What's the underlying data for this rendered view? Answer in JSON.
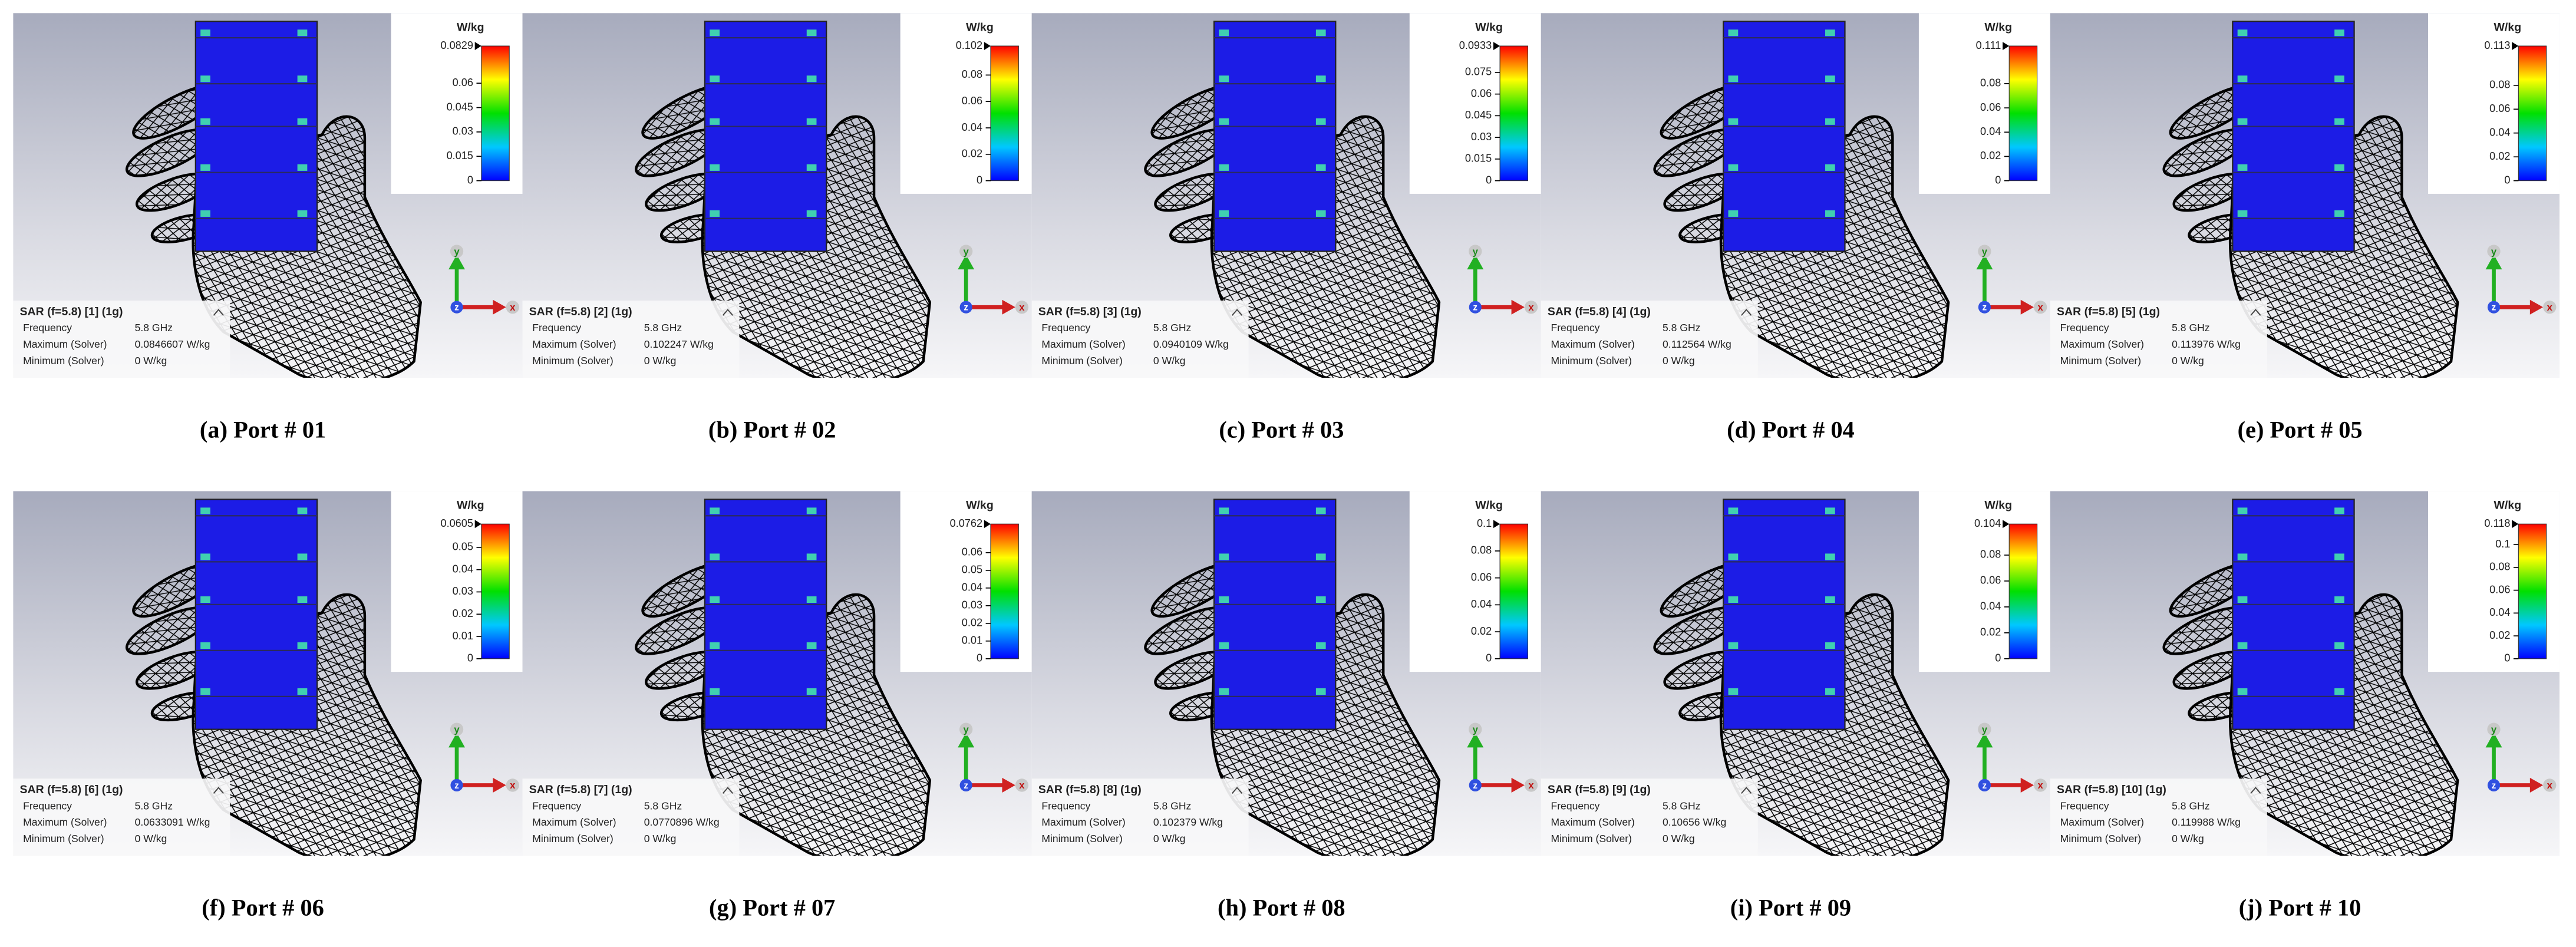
{
  "panels": [
    {
      "caption": "(a) Port # 01",
      "unit": "W/kg",
      "colorbar_max": 0.0829,
      "colorbar_ticks": [
        0.06,
        0.045,
        0.03,
        0.015,
        0
      ],
      "info": {
        "title": "SAR (f=5.8) [1] (1g)",
        "rows": [
          [
            "Frequency",
            "5.8 GHz"
          ],
          [
            "Maximum (Solver)",
            "0.0846607 W/kg"
          ],
          [
            "Minimum (Solver)",
            "0 W/kg"
          ]
        ]
      },
      "axes": {
        "y": "y",
        "z": "z",
        "x": "x"
      }
    },
    {
      "caption": "(b) Port # 02",
      "unit": "W/kg",
      "colorbar_max": 0.102,
      "colorbar_ticks": [
        0.08,
        0.06,
        0.04,
        0.02,
        0
      ],
      "info": {
        "title": "SAR (f=5.8) [2] (1g)",
        "rows": [
          [
            "Frequency",
            "5.8 GHz"
          ],
          [
            "Maximum (Solver)",
            "0.102247 W/kg"
          ],
          [
            "Minimum (Solver)",
            "0 W/kg"
          ]
        ]
      },
      "axes": {
        "y": "y",
        "z": "z",
        "x": "x"
      }
    },
    {
      "caption": "(c) Port # 03",
      "unit": "W/kg",
      "colorbar_max": 0.0933,
      "colorbar_ticks": [
        0.075,
        0.06,
        0.045,
        0.03,
        0.015,
        0
      ],
      "info": {
        "title": "SAR (f=5.8) [3] (1g)",
        "rows": [
          [
            "Frequency",
            "5.8 GHz"
          ],
          [
            "Maximum (Solver)",
            "0.0940109 W/kg"
          ],
          [
            "Minimum (Solver)",
            "0 W/kg"
          ]
        ]
      },
      "axes": {
        "y": "y",
        "z": "z",
        "x": "x"
      }
    },
    {
      "caption": "(d) Port # 04",
      "unit": "W/kg",
      "colorbar_max": 0.111,
      "colorbar_ticks": [
        0.08,
        0.06,
        0.04,
        0.02,
        0
      ],
      "info": {
        "title": "SAR (f=5.8) [4] (1g)",
        "rows": [
          [
            "Frequency",
            "5.8 GHz"
          ],
          [
            "Maximum (Solver)",
            "0.112564 W/kg"
          ],
          [
            "Minimum (Solver)",
            "0 W/kg"
          ]
        ]
      },
      "axes": {
        "y": "y",
        "z": "z",
        "x": "x"
      }
    },
    {
      "caption": "(e) Port # 05",
      "unit": "W/kg",
      "colorbar_max": 0.113,
      "colorbar_ticks": [
        0.08,
        0.06,
        0.04,
        0.02,
        0
      ],
      "info": {
        "title": "SAR (f=5.8) [5] (1g)",
        "rows": [
          [
            "Frequency",
            "5.8 GHz"
          ],
          [
            "Maximum (Solver)",
            "0.113976 W/kg"
          ],
          [
            "Minimum (Solver)",
            "0 W/kg"
          ]
        ]
      },
      "axes": {
        "y": "y",
        "z": "z",
        "x": "x"
      }
    },
    {
      "caption": "(f) Port # 06",
      "unit": "W/kg",
      "colorbar_max": 0.0605,
      "colorbar_ticks": [
        0.05,
        0.04,
        0.03,
        0.02,
        0.01,
        0
      ],
      "info": {
        "title": "SAR (f=5.8) [6] (1g)",
        "rows": [
          [
            "Frequency",
            "5.8 GHz"
          ],
          [
            "Maximum (Solver)",
            "0.0633091 W/kg"
          ],
          [
            "Minimum (Solver)",
            "0 W/kg"
          ]
        ]
      },
      "axes": {
        "y": "y",
        "z": "z",
        "x": "x"
      }
    },
    {
      "caption": "(g) Port # 07",
      "unit": "W/kg",
      "colorbar_max": 0.0762,
      "colorbar_ticks": [
        0.06,
        0.05,
        0.04,
        0.03,
        0.02,
        0.01,
        0
      ],
      "info": {
        "title": "SAR (f=5.8) [7] (1g)",
        "rows": [
          [
            "Frequency",
            "5.8 GHz"
          ],
          [
            "Maximum (Solver)",
            "0.0770896 W/kg"
          ],
          [
            "Minimum (Solver)",
            "0 W/kg"
          ]
        ]
      },
      "axes": {
        "y": "y",
        "z": "z",
        "x": "x"
      }
    },
    {
      "caption": "(h) Port # 08",
      "unit": "W/kg",
      "colorbar_max": 0.1,
      "colorbar_ticks": [
        0.08,
        0.06,
        0.04,
        0.02,
        0
      ],
      "info": {
        "title": "SAR (f=5.8) [8] (1g)",
        "rows": [
          [
            "Frequency",
            "5.8 GHz"
          ],
          [
            "Maximum (Solver)",
            "0.102379 W/kg"
          ],
          [
            "Minimum (Solver)",
            "0 W/kg"
          ]
        ]
      },
      "axes": {
        "y": "y",
        "z": "z",
        "x": "x"
      }
    },
    {
      "caption": "(i) Port # 09",
      "unit": "W/kg",
      "colorbar_max": 0.104,
      "colorbar_ticks": [
        0.08,
        0.06,
        0.04,
        0.02,
        0
      ],
      "info": {
        "title": "SAR (f=5.8) [9] (1g)",
        "rows": [
          [
            "Frequency",
            "5.8 GHz"
          ],
          [
            "Maximum (Solver)",
            "0.10656 W/kg"
          ],
          [
            "Minimum (Solver)",
            "0 W/kg"
          ]
        ]
      },
      "axes": {
        "y": "y",
        "z": "z",
        "x": "x"
      }
    },
    {
      "caption": "(j) Port # 10",
      "unit": "W/kg",
      "colorbar_max": 0.118,
      "colorbar_ticks": [
        0.1,
        0.08,
        0.06,
        0.04,
        0.02,
        0
      ],
      "info": {
        "title": "SAR (f=5.8) [10] (1g)",
        "rows": [
          [
            "Frequency",
            "5.8 GHz"
          ],
          [
            "Maximum (Solver)",
            "0.119988 W/kg"
          ],
          [
            "Minimum (Solver)",
            "0 W/kg"
          ]
        ]
      },
      "axes": {
        "y": "y",
        "z": "z",
        "x": "x"
      }
    }
  ]
}
